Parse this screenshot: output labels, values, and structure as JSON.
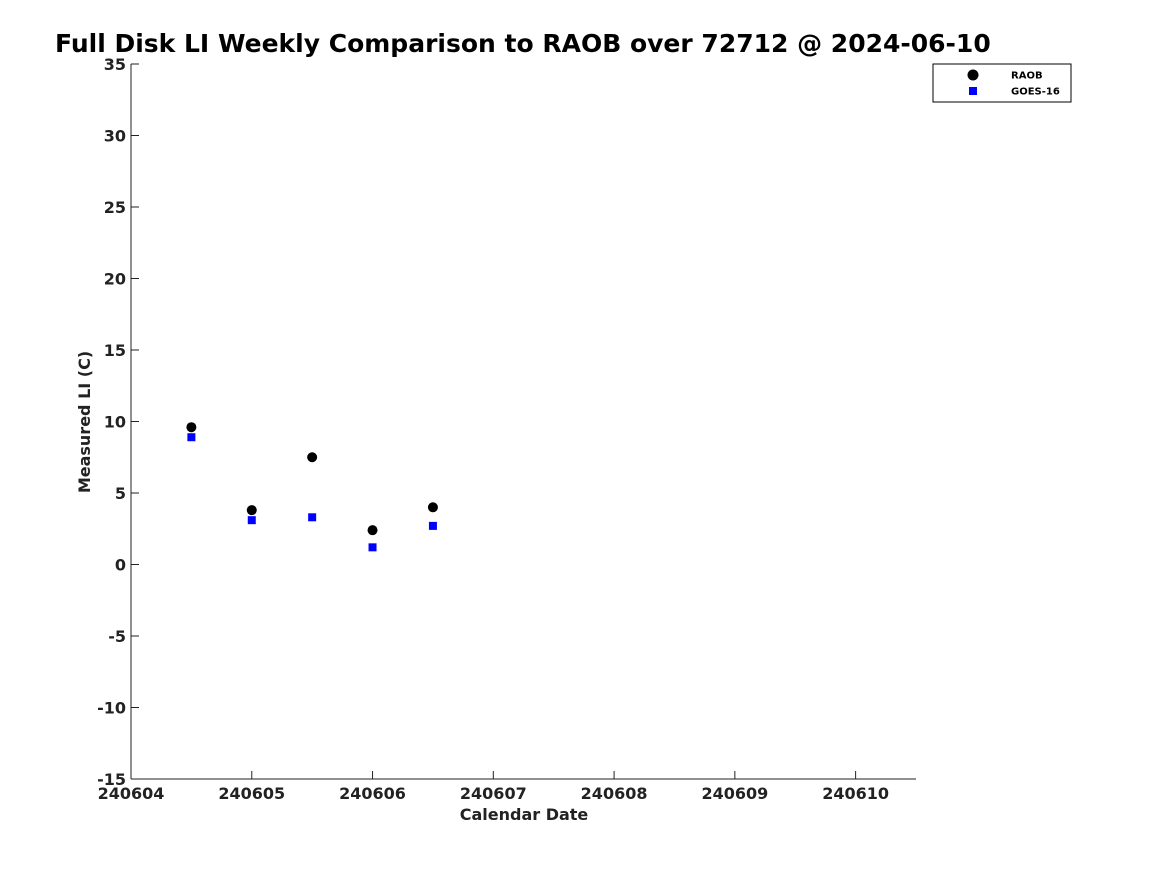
{
  "chart_data": {
    "type": "scatter",
    "title": "Full Disk LI Weekly Comparison to RAOB over 72712 @ 2024-06-10",
    "xlabel": "Calendar Date",
    "ylabel": "Measured LI (C)",
    "xlim": [
      240604,
      240610.5
    ],
    "ylim": [
      -15,
      35
    ],
    "x_tick_positions": [
      240604,
      240605,
      240606,
      240607,
      240608,
      240609,
      240610
    ],
    "x_tick_labels": [
      "240604",
      "240605",
      "240606",
      "240607",
      "240608",
      "240609",
      "240610"
    ],
    "y_ticks": [
      35,
      30,
      25,
      20,
      15,
      10,
      5,
      0,
      -5,
      -10,
      -15
    ],
    "grid": false,
    "legend_position": "top-right",
    "series": [
      {
        "name": "RAOB",
        "marker": "circle",
        "color": "#000000",
        "x": [
          240604.5,
          240605.0,
          240605.5,
          240606.0,
          240606.5
        ],
        "y": [
          9.6,
          3.8,
          7.5,
          2.4,
          4.0
        ]
      },
      {
        "name": "GOES-16",
        "marker": "square",
        "color": "#0000ff",
        "x": [
          240604.5,
          240605.0,
          240605.5,
          240606.0,
          240606.5
        ],
        "y": [
          8.9,
          3.1,
          3.3,
          1.2,
          2.7
        ]
      }
    ]
  }
}
